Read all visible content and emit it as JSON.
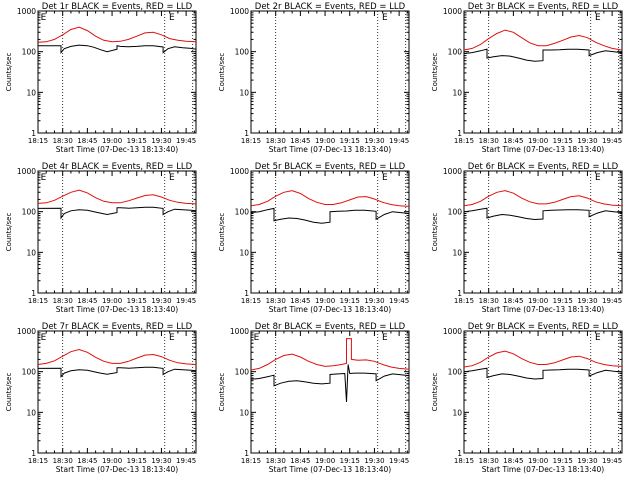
{
  "figure": {
    "colors": {
      "events": "#000000",
      "lld": "#e01010",
      "frame": "#000000",
      "background": "#ffffff"
    },
    "shared": {
      "ylabel": "Counts/sec",
      "xlabel": "Start Time (07-Dec-13 18:13:40)",
      "xticks": [
        "18:15",
        "18:30",
        "18:45",
        "19:00",
        "19:15",
        "19:30",
        "19:45"
      ],
      "yticks": [
        "1",
        "10",
        "100",
        "1000"
      ],
      "marker_label": "E",
      "scale": "log-y"
    }
  },
  "chart_data": [
    {
      "type": "line",
      "title": "Det 1r BLACK = Events, RED = LLD",
      "xlim": [
        "18:15",
        "19:51"
      ],
      "ylim": [
        1,
        1000
      ],
      "yscale": "log",
      "markers": [
        "18:30",
        "19:32",
        "19:49"
      ],
      "marker_labels": [
        "18:16",
        "19:34"
      ],
      "series": [
        {
          "name": "BLACK = Events",
          "color": "#000000",
          "x": [
            "18:15",
            "18:29",
            "18:29",
            "18:31",
            "18:35",
            "18:40",
            "18:45",
            "18:49",
            "18:53",
            "18:57",
            "19:03",
            "19:03",
            "19:05",
            "19:10",
            "19:15",
            "19:20",
            "19:25",
            "19:31",
            "19:31",
            "19:34",
            "19:38",
            "19:43",
            "19:48",
            "19:51"
          ],
          "y": [
            140,
            140,
            95,
            118,
            135,
            145,
            140,
            128,
            112,
            100,
            115,
            140,
            135,
            132,
            135,
            140,
            140,
            130,
            95,
            118,
            132,
            125,
            120,
            115
          ]
        },
        {
          "name": "RED = LLD",
          "color": "#e01010",
          "x": [
            "18:15",
            "18:20",
            "18:25",
            "18:30",
            "18:35",
            "18:40",
            "18:45",
            "18:50",
            "18:55",
            "19:00",
            "19:05",
            "19:10",
            "19:15",
            "19:20",
            "19:25",
            "19:30",
            "19:35",
            "19:40",
            "19:45",
            "19:51"
          ],
          "y": [
            170,
            175,
            200,
            260,
            350,
            400,
            330,
            240,
            190,
            175,
            180,
            200,
            240,
            290,
            300,
            260,
            210,
            190,
            180,
            175
          ]
        }
      ]
    },
    {
      "type": "line",
      "title": "Det 2r BLACK = Events, RED = LLD",
      "xlim": [
        "18:15",
        "19:51"
      ],
      "ylim": [
        1,
        1000
      ],
      "yscale": "log",
      "markers": [
        "18:30",
        "19:32",
        "19:49"
      ],
      "marker_labels": [
        "19:34"
      ],
      "series": []
    },
    {
      "type": "line",
      "title": "Det 3r BLACK = Events, RED = LLD",
      "xlim": [
        "18:15",
        "19:51"
      ],
      "ylim": [
        1,
        1000
      ],
      "yscale": "log",
      "markers": [
        "18:30",
        "19:32",
        "19:49"
      ],
      "marker_labels": [
        "19:34"
      ],
      "series": [
        {
          "name": "BLACK = Events",
          "color": "#000000",
          "x": [
            "18:15",
            "18:20",
            "18:25",
            "18:29",
            "18:29",
            "18:33",
            "18:38",
            "18:43",
            "18:48",
            "18:53",
            "18:58",
            "19:03",
            "19:03",
            "19:08",
            "19:13",
            "19:18",
            "19:24",
            "19:31",
            "19:31",
            "19:36",
            "19:41",
            "19:46",
            "19:51"
          ],
          "y": [
            90,
            95,
            105,
            115,
            70,
            75,
            80,
            78,
            70,
            62,
            58,
            60,
            110,
            110,
            112,
            115,
            115,
            110,
            80,
            95,
            105,
            100,
            95
          ]
        },
        {
          "name": "RED = LLD",
          "color": "#e01010",
          "x": [
            "18:15",
            "18:20",
            "18:25",
            "18:30",
            "18:35",
            "18:40",
            "18:45",
            "18:50",
            "18:55",
            "19:00",
            "19:05",
            "19:10",
            "19:15",
            "19:20",
            "19:25",
            "19:30",
            "19:35",
            "19:40",
            "19:45",
            "19:51"
          ],
          "y": [
            110,
            120,
            150,
            210,
            280,
            340,
            300,
            220,
            165,
            140,
            140,
            160,
            190,
            230,
            250,
            220,
            170,
            140,
            120,
            110
          ]
        }
      ]
    },
    {
      "type": "line",
      "title": "Det 4r BLACK = Events, RED = LLD",
      "xlim": [
        "18:15",
        "19:51"
      ],
      "ylim": [
        1,
        1000
      ],
      "yscale": "log",
      "markers": [
        "18:30",
        "19:32",
        "19:49"
      ],
      "marker_labels": [
        "18:16",
        "19:34"
      ],
      "series": [
        {
          "name": "BLACK = Events",
          "color": "#000000",
          "x": [
            "18:15",
            "18:29",
            "18:29",
            "18:31",
            "18:35",
            "18:40",
            "18:45",
            "18:49",
            "18:53",
            "18:57",
            "19:03",
            "19:03",
            "19:05",
            "19:10",
            "19:15",
            "19:20",
            "19:25",
            "19:31",
            "19:31",
            "19:34",
            "19:38",
            "19:43",
            "19:48",
            "19:51"
          ],
          "y": [
            120,
            122,
            70,
            90,
            105,
            112,
            108,
            100,
            92,
            85,
            95,
            125,
            125,
            122,
            125,
            128,
            128,
            120,
            85,
            100,
            115,
            112,
            108,
            105
          ]
        },
        {
          "name": "RED = LLD",
          "color": "#e01010",
          "x": [
            "18:15",
            "18:20",
            "18:25",
            "18:30",
            "18:35",
            "18:40",
            "18:45",
            "18:50",
            "18:55",
            "19:00",
            "19:05",
            "19:10",
            "19:15",
            "19:20",
            "19:25",
            "19:30",
            "19:35",
            "19:40",
            "19:45",
            "19:51"
          ],
          "y": [
            160,
            165,
            190,
            240,
            300,
            340,
            290,
            220,
            180,
            165,
            165,
            185,
            215,
            250,
            260,
            230,
            190,
            170,
            160,
            155
          ]
        }
      ]
    },
    {
      "type": "line",
      "title": "Det 5r BLACK = Events, RED = LLD",
      "xlim": [
        "18:15",
        "19:51"
      ],
      "ylim": [
        1,
        1000
      ],
      "yscale": "log",
      "markers": [
        "18:30",
        "19:32",
        "19:49"
      ],
      "marker_labels": [
        "19:34"
      ],
      "series": [
        {
          "name": "BLACK = Events",
          "color": "#000000",
          "x": [
            "18:15",
            "18:20",
            "18:25",
            "18:29",
            "18:29",
            "18:33",
            "18:38",
            "18:43",
            "18:48",
            "18:53",
            "18:58",
            "19:03",
            "19:03",
            "19:08",
            "19:13",
            "19:18",
            "19:24",
            "19:31",
            "19:31",
            "19:36",
            "19:41",
            "19:46",
            "19:51"
          ],
          "y": [
            95,
            100,
            112,
            120,
            60,
            65,
            70,
            68,
            62,
            55,
            52,
            55,
            100,
            102,
            104,
            108,
            108,
            102,
            65,
            85,
            100,
            95,
            90
          ]
        },
        {
          "name": "RED = LLD",
          "color": "#e01010",
          "x": [
            "18:15",
            "18:20",
            "18:25",
            "18:30",
            "18:35",
            "18:40",
            "18:45",
            "18:50",
            "18:55",
            "19:00",
            "19:05",
            "19:10",
            "19:15",
            "19:20",
            "19:25",
            "19:30",
            "19:35",
            "19:40",
            "19:45",
            "19:51"
          ],
          "y": [
            140,
            150,
            180,
            240,
            300,
            330,
            280,
            210,
            170,
            150,
            150,
            165,
            195,
            230,
            235,
            205,
            170,
            150,
            140,
            135
          ]
        }
      ]
    },
    {
      "type": "line",
      "title": "Det 6r BLACK = Events, RED = LLD",
      "xlim": [
        "18:15",
        "19:51"
      ],
      "ylim": [
        1,
        1000
      ],
      "yscale": "log",
      "markers": [
        "18:30",
        "19:32",
        "19:49"
      ],
      "marker_labels": [
        "19:34"
      ],
      "series": [
        {
          "name": "BLACK = Events",
          "color": "#000000",
          "x": [
            "18:15",
            "18:20",
            "18:25",
            "18:29",
            "18:29",
            "18:33",
            "18:38",
            "18:43",
            "18:48",
            "18:53",
            "18:58",
            "19:03",
            "19:03",
            "19:08",
            "19:13",
            "19:18",
            "19:24",
            "19:31",
            "19:31",
            "19:36",
            "19:41",
            "19:46",
            "19:51"
          ],
          "y": [
            100,
            105,
            115,
            122,
            70,
            78,
            85,
            82,
            75,
            68,
            64,
            66,
            105,
            108,
            110,
            112,
            112,
            108,
            75,
            92,
            105,
            100,
            95
          ]
        },
        {
          "name": "RED = LLD",
          "color": "#e01010",
          "x": [
            "18:15",
            "18:20",
            "18:25",
            "18:30",
            "18:35",
            "18:40",
            "18:45",
            "18:50",
            "18:55",
            "19:00",
            "19:05",
            "19:10",
            "19:15",
            "19:20",
            "19:25",
            "19:30",
            "19:35",
            "19:40",
            "19:45",
            "19:51"
          ],
          "y": [
            140,
            150,
            180,
            240,
            300,
            330,
            285,
            215,
            175,
            155,
            155,
            170,
            200,
            235,
            245,
            215,
            175,
            155,
            145,
            140
          ]
        }
      ]
    },
    {
      "type": "line",
      "title": "Det 7r BLACK = Events, RED = LLD",
      "xlim": [
        "18:15",
        "19:51"
      ],
      "ylim": [
        1,
        1000
      ],
      "yscale": "log",
      "markers": [
        "18:30",
        "19:32",
        "19:49"
      ],
      "marker_labels": [
        "18:16",
        "19:34"
      ],
      "series": [
        {
          "name": "BLACK = Events",
          "color": "#000000",
          "x": [
            "18:15",
            "18:29",
            "18:29",
            "18:31",
            "18:35",
            "18:40",
            "18:45",
            "18:49",
            "18:53",
            "18:57",
            "19:03",
            "19:03",
            "19:05",
            "19:10",
            "19:15",
            "19:20",
            "19:25",
            "19:31",
            "19:31",
            "19:34",
            "19:38",
            "19:43",
            "19:48",
            "19:51"
          ],
          "y": [
            120,
            122,
            75,
            92,
            105,
            112,
            108,
            100,
            92,
            86,
            95,
            125,
            125,
            122,
            125,
            128,
            128,
            120,
            85,
            100,
            115,
            112,
            108,
            105
          ]
        },
        {
          "name": "RED = LLD",
          "color": "#e01010",
          "x": [
            "18:15",
            "18:20",
            "18:25",
            "18:30",
            "18:35",
            "18:40",
            "18:45",
            "18:50",
            "18:55",
            "19:00",
            "19:05",
            "19:10",
            "19:15",
            "19:20",
            "19:25",
            "19:30",
            "19:35",
            "19:40",
            "19:45",
            "19:51"
          ],
          "y": [
            150,
            160,
            185,
            240,
            310,
            350,
            300,
            225,
            180,
            160,
            160,
            180,
            215,
            255,
            265,
            235,
            190,
            165,
            155,
            150
          ]
        }
      ]
    },
    {
      "type": "line",
      "title": "Det 8r BLACK = Events, RED = LLD",
      "xlim": [
        "18:15",
        "19:51"
      ],
      "ylim": [
        1,
        1000
      ],
      "yscale": "log",
      "markers": [
        "18:30",
        "19:32",
        "19:49"
      ],
      "marker_labels": [
        "18:16",
        "19:34"
      ],
      "series": [
        {
          "name": "BLACK = Events",
          "color": "#000000",
          "x": [
            "18:15",
            "18:20",
            "18:25",
            "18:29",
            "18:29",
            "18:33",
            "18:38",
            "18:43",
            "18:48",
            "18:53",
            "18:58",
            "19:03",
            "19:03",
            "19:08",
            "19:12",
            "19:13",
            "19:14",
            "19:15",
            "19:18",
            "19:24",
            "19:31",
            "19:31",
            "19:36",
            "19:41",
            "19:46",
            "19:51"
          ],
          "y": [
            65,
            68,
            75,
            82,
            45,
            52,
            58,
            60,
            56,
            52,
            50,
            52,
            85,
            88,
            90,
            18,
            150,
            90,
            92,
            92,
            88,
            60,
            78,
            88,
            84,
            80
          ]
        },
        {
          "name": "RED = LLD",
          "color": "#e01010",
          "x": [
            "18:15",
            "18:20",
            "18:25",
            "18:30",
            "18:35",
            "18:40",
            "18:45",
            "18:50",
            "18:55",
            "19:00",
            "19:05",
            "19:10",
            "19:13",
            "19:13",
            "19:16",
            "19:16",
            "19:20",
            "19:25",
            "19:30",
            "19:35",
            "19:40",
            "19:45",
            "19:51"
          ],
          "y": [
            110,
            120,
            150,
            200,
            250,
            270,
            230,
            180,
            150,
            135,
            140,
            150,
            160,
            650,
            650,
            200,
            190,
            195,
            180,
            150,
            130,
            120,
            115
          ]
        }
      ]
    },
    {
      "type": "line",
      "title": "Det 9r BLACK = Events, RED = LLD",
      "xlim": [
        "18:15",
        "19:51"
      ],
      "ylim": [
        1,
        1000
      ],
      "yscale": "log",
      "markers": [
        "18:30",
        "19:32",
        "19:49"
      ],
      "marker_labels": [
        "19:34"
      ],
      "series": [
        {
          "name": "BLACK = Events",
          "color": "#000000",
          "x": [
            "18:15",
            "18:20",
            "18:25",
            "18:29",
            "18:29",
            "18:33",
            "18:38",
            "18:43",
            "18:48",
            "18:53",
            "18:58",
            "19:03",
            "19:03",
            "19:08",
            "19:13",
            "19:18",
            "19:24",
            "19:31",
            "19:31",
            "19:36",
            "19:41",
            "19:46",
            "19:51"
          ],
          "y": [
            100,
            105,
            115,
            122,
            72,
            80,
            88,
            85,
            78,
            70,
            66,
            68,
            108,
            110,
            112,
            115,
            115,
            110,
            78,
            95,
            108,
            102,
            98
          ]
        },
        {
          "name": "RED = LLD",
          "color": "#e01010",
          "x": [
            "18:15",
            "18:20",
            "18:25",
            "18:30",
            "18:35",
            "18:40",
            "18:45",
            "18:50",
            "18:55",
            "19:00",
            "19:05",
            "19:10",
            "19:15",
            "19:20",
            "19:25",
            "19:30",
            "19:35",
            "19:40",
            "19:45",
            "19:51"
          ],
          "y": [
            130,
            140,
            170,
            230,
            290,
            320,
            275,
            210,
            170,
            150,
            150,
            165,
            195,
            230,
            240,
            210,
            170,
            150,
            140,
            135
          ]
        }
      ]
    }
  ]
}
